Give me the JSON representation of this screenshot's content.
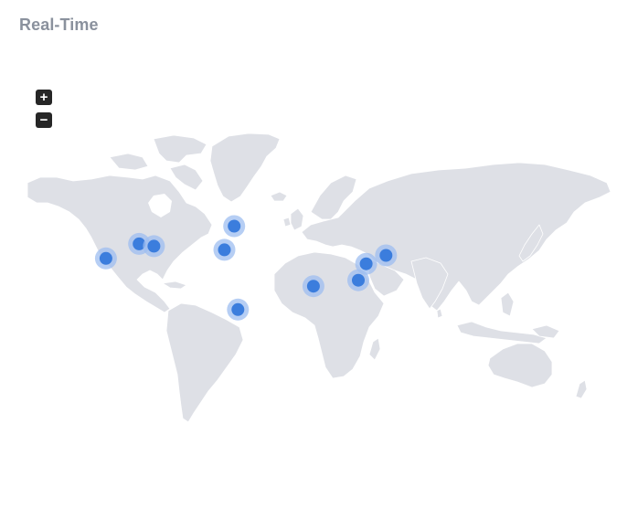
{
  "widget": {
    "title": "Real-Time"
  },
  "controls": {
    "zoom_in_label": "+",
    "zoom_out_label": "−"
  },
  "colors": {
    "land": "#dee0e6",
    "border": "#ffffff",
    "marker_fill": "#3b7ddd",
    "marker_halo": "#9dbdf0",
    "title": "#8a919d"
  },
  "markers": [
    {
      "name": "los-angeles",
      "lon": -118.2,
      "lat": 34.1
    },
    {
      "name": "chicago",
      "lon": -87.6,
      "lat": 41.9
    },
    {
      "name": "new-york",
      "lon": -74.0,
      "lat": 40.7
    },
    {
      "name": "london",
      "lon": -0.1,
      "lat": 51.5
    },
    {
      "name": "lisbon",
      "lon": -9.1,
      "lat": 38.7
    },
    {
      "name": "lagos",
      "lon": 3.4,
      "lat": 6.5
    },
    {
      "name": "mumbai",
      "lon": 72.9,
      "lat": 19.1
    },
    {
      "name": "hong-kong",
      "lon": 114.2,
      "lat": 22.3
    },
    {
      "name": "shanghai",
      "lon": 121.5,
      "lat": 31.2
    },
    {
      "name": "tokyo",
      "lon": 139.7,
      "lat": 35.7
    }
  ]
}
